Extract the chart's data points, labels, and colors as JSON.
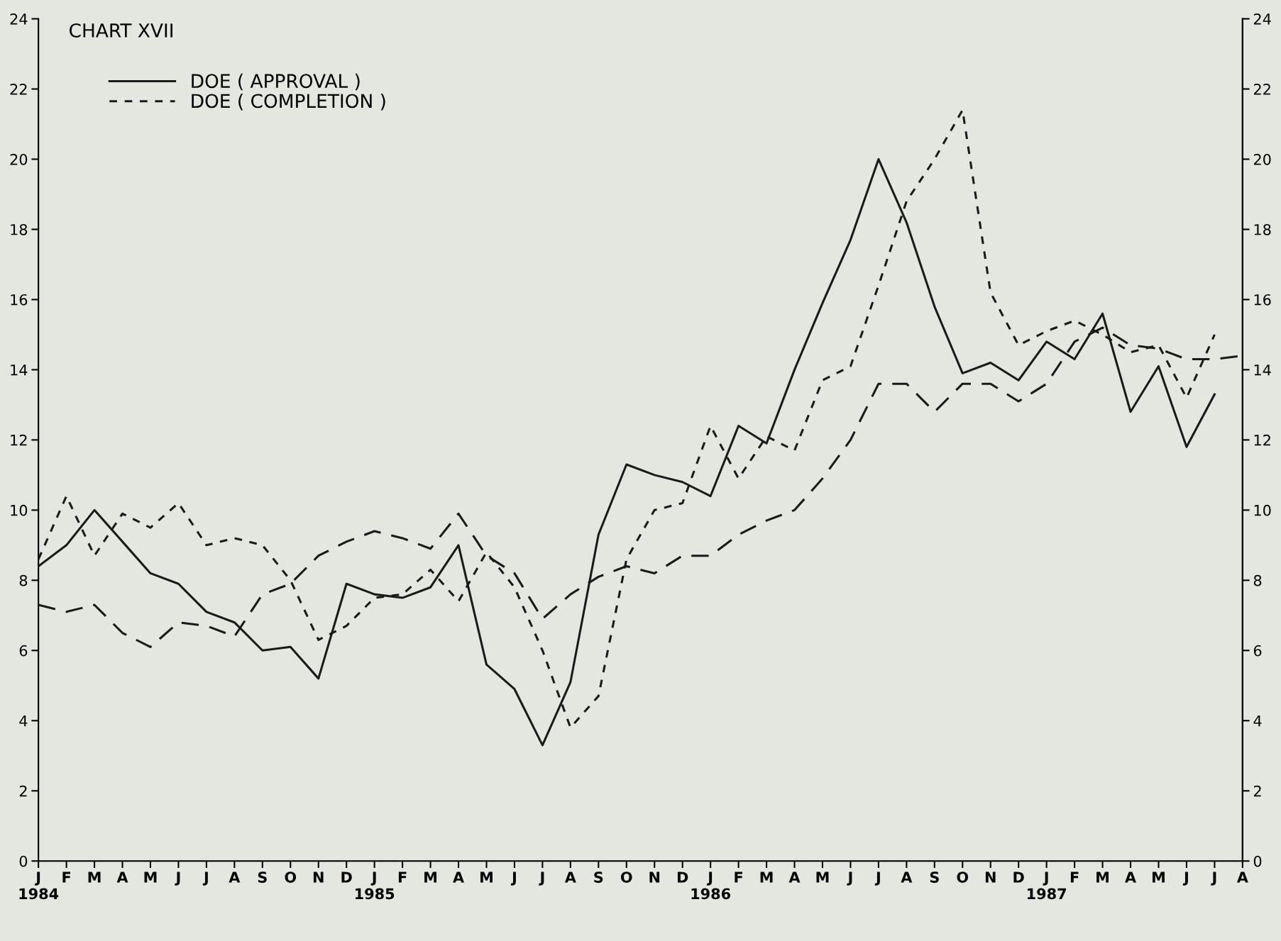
{
  "chart_data": {
    "type": "line",
    "title": "CHART XVII",
    "categories": [
      "J\n1984",
      "F",
      "M",
      "A",
      "M",
      "J",
      "J",
      "A",
      "S",
      "O",
      "N",
      "D",
      "J\n1985",
      "F",
      "M",
      "A",
      "M",
      "J",
      "J",
      "A",
      "S",
      "O",
      "N",
      "D",
      "J\n1986",
      "F",
      "M",
      "A",
      "M",
      "J",
      "J",
      "A",
      "S",
      "O",
      "N",
      "D",
      "J\n1987",
      "F",
      "M",
      "A",
      "M",
      "J",
      "J",
      "A"
    ],
    "series": [
      {
        "name": "DOE ( APPROVAL )",
        "color": "#1a1a1a",
        "line_style": "solid",
        "values": [
          8.4,
          9.0,
          10.0,
          9.1,
          8.2,
          7.9,
          7.1,
          6.8,
          6.0,
          6.1,
          5.2,
          7.9,
          7.6,
          7.5,
          7.8,
          9.0,
          5.6,
          4.9,
          3.3,
          5.1,
          9.3,
          11.3,
          11.0,
          10.8,
          10.4,
          12.4,
          11.9,
          14.0,
          15.9,
          17.7,
          20.0,
          18.2,
          15.8,
          13.9,
          14.2,
          13.7,
          14.8,
          14.3,
          15.6,
          12.8,
          14.1,
          11.8,
          13.3,
          null
        ]
      },
      {
        "name": "DOE ( COMPLETION )",
        "color": "#1a1a1a",
        "line_style": "dotted",
        "values": [
          8.6,
          10.4,
          8.7,
          9.9,
          9.5,
          10.2,
          9.0,
          9.2,
          9.0,
          8.0,
          6.3,
          6.7,
          7.5,
          7.6,
          8.3,
          7.4,
          8.8,
          7.8,
          6.0,
          3.8,
          4.7,
          8.6,
          10.0,
          10.2,
          12.4,
          10.9,
          12.1,
          11.7,
          13.7,
          14.1,
          16.4,
          18.8,
          20.0,
          21.4,
          16.2,
          14.7,
          15.1,
          15.4,
          15.0,
          14.5,
          14.7,
          13.2,
          15.0,
          null
        ]
      },
      {
        "color": "#1a1a1a",
        "line_style": "dashed",
        "values": [
          7.3,
          7.1,
          7.3,
          6.5,
          6.1,
          6.8,
          6.7,
          6.4,
          7.6,
          7.9,
          8.7,
          9.1,
          9.4,
          9.2,
          8.9,
          9.9,
          8.7,
          8.2,
          6.9,
          7.6,
          8.1,
          8.4,
          8.2,
          8.7,
          8.7,
          9.3,
          9.7,
          10.0,
          10.9,
          12.0,
          13.6,
          13.6,
          12.8,
          13.6,
          13.6,
          13.1,
          13.6,
          14.8,
          15.2,
          14.7,
          14.6,
          14.3,
          14.3,
          14.4
        ]
      }
    ],
    "ylim": [
      0,
      24
    ],
    "yticks": [
      0,
      2,
      4,
      6,
      8,
      10,
      12,
      14,
      16,
      18,
      20,
      22,
      24
    ],
    "y2lim": [
      0,
      24
    ],
    "y2ticks": [
      0,
      2,
      4,
      6,
      8,
      10,
      12,
      14,
      16,
      18,
      20,
      22,
      24
    ],
    "grid": false,
    "legend": "top left"
  }
}
